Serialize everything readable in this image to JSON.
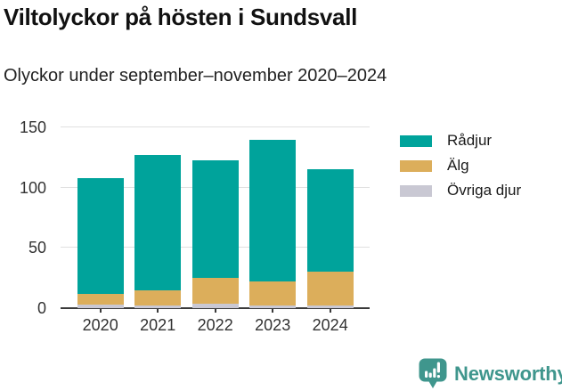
{
  "header": {
    "title": "Viltolyckor på hösten i Sundsvall",
    "subtitle": "Olyckor under september–november 2020–2024"
  },
  "chart_data": {
    "type": "bar",
    "stacked": true,
    "title": "Viltolyckor på hösten i Sundsvall",
    "subtitle": "Olyckor under september–november 2020–2024",
    "categories": [
      "2020",
      "2021",
      "2022",
      "2023",
      "2024"
    ],
    "series": [
      {
        "name": "Rådjur",
        "color": "#00a39b",
        "values": [
          96,
          112,
          98,
          118,
          85
        ]
      },
      {
        "name": "Älg",
        "color": "#dcae5b",
        "values": [
          9,
          13,
          21,
          20,
          28
        ]
      },
      {
        "name": "Övriga djur",
        "color": "#c9c8d3",
        "values": [
          3,
          2,
          4,
          2,
          2
        ]
      }
    ],
    "stack_order_bottom_to_top": [
      "Övriga djur",
      "Älg",
      "Rådjur"
    ],
    "totals": [
      108,
      127,
      123,
      140,
      115
    ],
    "xlabel": "",
    "ylabel": "",
    "ylim": [
      0,
      150
    ],
    "yticks": [
      0,
      50,
      100,
      150
    ],
    "grid": true,
    "legend_position": "right",
    "axis_color": "#3a3a3a",
    "gridline_color": "#e0e0e0"
  },
  "footer": {
    "brand": "Newsworthy",
    "brand_color": "#3f968d"
  }
}
